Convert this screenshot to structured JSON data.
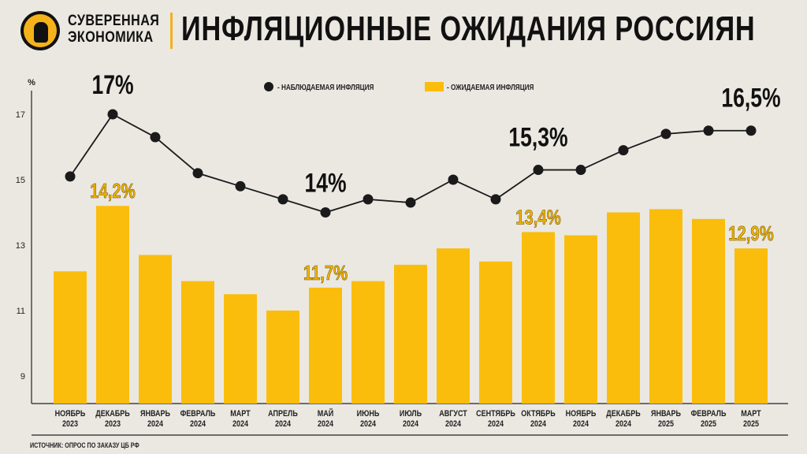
{
  "header": {
    "brand_line1": "СУВЕРЕННАЯ",
    "brand_line2": "ЭКОНОМИКА",
    "title": "ИНФЛЯЦИОННЫЕ ОЖИДАНИЯ РОССИЯН"
  },
  "source": "ИСТОЧНИК: ОПРОС ПО ЗАКАЗУ ЦБ РФ",
  "colors": {
    "bar": "#fbbd0c",
    "line": "#1a1a1a",
    "bar_label": "#f2b400",
    "background": "#ebe8e2"
  },
  "chart_data": {
    "type": "bar+line",
    "ylabel": "%",
    "yticks": [
      9,
      11,
      13,
      15,
      17
    ],
    "ylim": [
      8.1,
      18.5
    ],
    "grid": false,
    "legend_position": "top",
    "categories": [
      [
        "НОЯБРЬ",
        "2023"
      ],
      [
        "ДЕКАБРЬ",
        "2023"
      ],
      [
        "ЯНВАРЬ",
        "2024"
      ],
      [
        "ФЕВРАЛЬ",
        "2024"
      ],
      [
        "МАРТ",
        "2024"
      ],
      [
        "АПРЕЛЬ",
        "2024"
      ],
      [
        "МАЙ",
        "2024"
      ],
      [
        "ИЮНЬ",
        "2024"
      ],
      [
        "ИЮЛЬ",
        "2024"
      ],
      [
        "АВГУСТ",
        "2024"
      ],
      [
        "СЕНТЯБРЬ",
        "2024"
      ],
      [
        "ОКТЯБРЬ",
        "2024"
      ],
      [
        "НОЯБРЬ",
        "2024"
      ],
      [
        "ДЕКАБРЬ",
        "2024"
      ],
      [
        "ЯНВАРЬ",
        "2025"
      ],
      [
        "ФЕВРАЛЬ",
        "2025"
      ],
      [
        "МАРТ",
        "2025"
      ]
    ],
    "series": [
      {
        "name": "- НАБЛЮДАЕМАЯ ИНФЛЯЦИЯ",
        "type": "line",
        "values": [
          15.1,
          17.0,
          16.3,
          15.2,
          14.8,
          14.4,
          14.0,
          14.4,
          14.3,
          15.0,
          14.4,
          15.3,
          15.3,
          15.9,
          16.4,
          16.5,
          16.5
        ]
      },
      {
        "name": "- ОЖИДАЕМАЯ ИНФЛЯЦИЯ",
        "type": "bar",
        "values": [
          12.2,
          14.2,
          12.7,
          11.9,
          11.5,
          11.0,
          11.7,
          11.9,
          12.4,
          12.9,
          12.5,
          13.4,
          13.3,
          14.0,
          14.1,
          13.8,
          12.9
        ]
      }
    ],
    "annotations": [
      {
        "series": 0,
        "index": 1,
        "text": "17%"
      },
      {
        "series": 0,
        "index": 6,
        "text": "14%"
      },
      {
        "series": 0,
        "index": 11,
        "text": "15,3%"
      },
      {
        "series": 0,
        "index": 16,
        "text": "16,5%"
      },
      {
        "series": 1,
        "index": 1,
        "text": "14,2%"
      },
      {
        "series": 1,
        "index": 6,
        "text": "11,7%"
      },
      {
        "series": 1,
        "index": 11,
        "text": "13,4%"
      },
      {
        "series": 1,
        "index": 16,
        "text": "12,9%"
      }
    ]
  }
}
